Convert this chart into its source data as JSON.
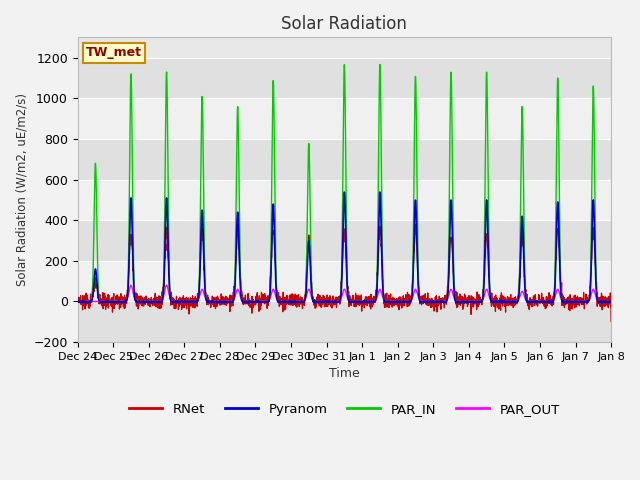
{
  "title": "Solar Radiation",
  "ylabel": "Solar Radiation (W/m2, uE/m2/s)",
  "xlabel": "Time",
  "ylim": [
    -200,
    1300
  ],
  "yticks": [
    -200,
    0,
    200,
    400,
    600,
    800,
    1000,
    1200
  ],
  "xlim": [
    0,
    15
  ],
  "xtick_labels": [
    "Dec 24",
    "Dec 25",
    "Dec 26",
    "Dec 27",
    "Dec 28",
    "Dec 29",
    "Dec 30",
    "Dec 31",
    "Jan 1",
    "Jan 2",
    "Jan 3",
    "Jan 4",
    "Jan 5",
    "Jan 6",
    "Jan 7",
    "Jan 8"
  ],
  "colors": {
    "RNet": "#cc0000",
    "Pyranom": "#0000cc",
    "PAR_IN": "#00cc00",
    "PAR_OUT": "#ff00ff"
  },
  "station_label": "TW_met",
  "station_box_facecolor": "#ffffcc",
  "station_box_edgecolor": "#cc8800",
  "plot_bg": "#e8e8e8",
  "band_colors": [
    "#e0e0e0",
    "#f0f0f0"
  ],
  "grid_color": "#ffffff",
  "fig_bg": "#f2f2f2",
  "par_in_peaks": [
    680,
    1120,
    1130,
    1010,
    960,
    1090,
    780,
    1170,
    1170,
    1110,
    1130,
    1130,
    960,
    1100,
    1060
  ],
  "pyranom_peaks": [
    160,
    510,
    510,
    450,
    440,
    480,
    300,
    540,
    540,
    500,
    500,
    500,
    420,
    490,
    500
  ],
  "rnet_peaks": [
    100,
    330,
    330,
    350,
    340,
    360,
    310,
    330,
    350,
    350,
    320,
    310,
    330,
    360,
    350
  ],
  "par_out_peaks": [
    0,
    80,
    80,
    60,
    60,
    60,
    60,
    60,
    60,
    60,
    60,
    60,
    50,
    60,
    60
  ],
  "rnet_night": -80,
  "n_days": 15,
  "n_per_day": 144
}
